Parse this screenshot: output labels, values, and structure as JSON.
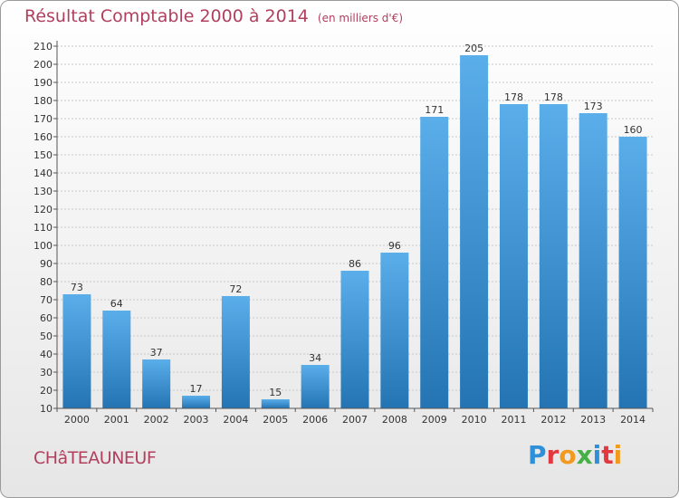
{
  "title": "Résultat Comptable 2000 à 2014",
  "subtitle": "(en milliers d'€)",
  "city": "CHâTEAUNEUF",
  "brand": [
    "P",
    "r",
    "o",
    "x",
    "i",
    "t",
    "i"
  ],
  "brand_colors": [
    "#2f8fd8",
    "#e2383f",
    "#f29a1e",
    "#46b046",
    "#2f8fd8",
    "#e2383f",
    "#f29a1e"
  ],
  "colors": {
    "bar_top": "#5aaeea",
    "bar_bottom": "#2474b4",
    "title": "#b0405e"
  },
  "chart_data": {
    "type": "bar",
    "categories": [
      "2000",
      "2001",
      "2002",
      "2003",
      "2004",
      "2005",
      "2006",
      "2007",
      "2008",
      "2009",
      "2010",
      "2011",
      "2012",
      "2013",
      "2014"
    ],
    "values": [
      73,
      64,
      37,
      17,
      72,
      15,
      34,
      86,
      96,
      171,
      205,
      178,
      178,
      173,
      160
    ],
    "ylim": [
      10,
      210
    ],
    "yticks": [
      10,
      20,
      30,
      40,
      50,
      60,
      70,
      80,
      90,
      100,
      110,
      120,
      130,
      140,
      150,
      160,
      170,
      180,
      190,
      200,
      210
    ],
    "grid": true,
    "xlabel": "",
    "ylabel": ""
  }
}
